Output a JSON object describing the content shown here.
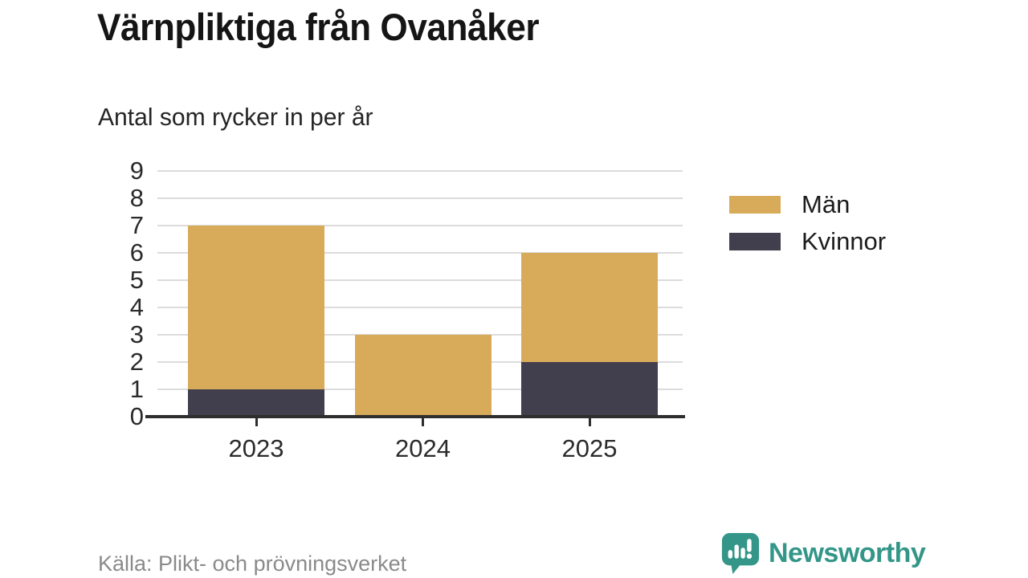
{
  "chart_data": {
    "type": "bar",
    "stacked": true,
    "title": "Värnpliktiga från Ovanåker",
    "subtitle": "Antal som rycker in per år",
    "categories": [
      "2023",
      "2024",
      "2025"
    ],
    "series": [
      {
        "name": "Män",
        "color": "#D8AB5A",
        "values": [
          6,
          3,
          4
        ]
      },
      {
        "name": "Kvinnor",
        "color": "#413F4D",
        "values": [
          1,
          0,
          2
        ]
      }
    ],
    "stack_totals": [
      7,
      3,
      6
    ],
    "stack_order_bottom_to_top": [
      "Kvinnor",
      "Män"
    ],
    "ylim": [
      0,
      9
    ],
    "yticks": [
      0,
      1,
      2,
      3,
      4,
      5,
      6,
      7,
      8,
      9
    ],
    "xlabel": "",
    "ylabel": "",
    "grid": "horizontal",
    "legend_position": "right"
  },
  "footer": {
    "source": "Källa: Plikt- och prövningsverket",
    "brand": "Newsworthy"
  },
  "colors": {
    "men_gold": "#D8AB5A",
    "women_dark": "#413F4D",
    "brand_teal": "#339688",
    "gridline": "#DCDCDC",
    "axis": "#2E2E2E",
    "source_text": "#8A8A8A"
  }
}
